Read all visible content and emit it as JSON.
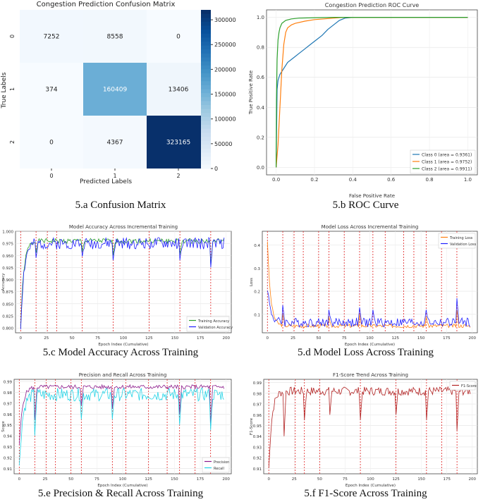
{
  "captions": {
    "a": "5.a Confusion Matrix",
    "b": "5.b ROC Curve",
    "c": "5.c Model Accuracy Across Training",
    "d": "5.d Model Loss Across Training",
    "e": "5.e Precision & Recall Across Training",
    "f": "5.f F1-Score Across Training"
  },
  "chart_data": [
    {
      "id": "confusion",
      "type": "heatmap",
      "title": "Congestion Prediction Confusion Matrix",
      "xlabel": "Predicted Labels",
      "ylabel": "True Labels",
      "x_tick_labels": [
        "0",
        "1",
        "2"
      ],
      "y_tick_labels": [
        "0",
        "1",
        "2"
      ],
      "matrix": [
        [
          7252,
          8558,
          0
        ],
        [
          374,
          160409,
          13406
        ],
        [
          0,
          4367,
          323165
        ]
      ],
      "colorbar_ticks": [
        0,
        50000,
        100000,
        150000,
        200000,
        250000,
        300000
      ],
      "colorbar_labels": [
        "0",
        "50000",
        "100000",
        "150000",
        "200000",
        "250000",
        "300000"
      ],
      "colormap": [
        "#f7fbff",
        "#deebf7",
        "#c6dbef",
        "#9ecae1",
        "#6baed6",
        "#4292c6",
        "#2171b5",
        "#08519c",
        "#08306b"
      ]
    },
    {
      "id": "roc",
      "type": "line",
      "title": "Congestion Prediction ROC Curve",
      "xlabel": "False Positive Rate",
      "ylabel": "True Positive Rate",
      "xlim": [
        -0.05,
        1.05
      ],
      "ylim": [
        -0.05,
        1.05
      ],
      "x_ticks": [
        0,
        0.2,
        0.4,
        0.6,
        0.8,
        1.0
      ],
      "x_tick_labels": [
        "0.0",
        "0.2",
        "0.4",
        "0.6",
        "0.8",
        "1.0"
      ],
      "y_ticks": [
        0,
        0.2,
        0.4,
        0.6,
        0.8,
        1.0
      ],
      "y_tick_labels": [
        "0.0",
        "0.2",
        "0.4",
        "0.6",
        "0.8",
        "1.0"
      ],
      "legend_position": "bottom-right",
      "series": [
        {
          "name": "Class 0 (area = 0.9361)",
          "color": "#1f77b4",
          "x": [
            0,
            0.005,
            0.01,
            0.02,
            0.04,
            0.06,
            0.09,
            0.12,
            0.15,
            0.18,
            0.21,
            0.24,
            0.27,
            0.3,
            0.33,
            0.36,
            0.4,
            0.45,
            1.0
          ],
          "y": [
            0,
            0.52,
            0.58,
            0.62,
            0.66,
            0.7,
            0.73,
            0.76,
            0.79,
            0.82,
            0.85,
            0.88,
            0.92,
            0.95,
            0.98,
            0.995,
            1.0,
            1.0,
            1.0
          ]
        },
        {
          "name": "Class 1 (area = 0.9752)",
          "color": "#ff7f0e",
          "x": [
            0,
            0.01,
            0.02,
            0.03,
            0.04,
            0.05,
            0.06,
            0.08,
            0.1,
            0.15,
            0.2,
            0.25,
            0.3,
            0.35,
            0.4,
            1.0
          ],
          "y": [
            0,
            0.15,
            0.4,
            0.65,
            0.82,
            0.9,
            0.93,
            0.95,
            0.96,
            0.975,
            0.985,
            0.99,
            0.995,
            1.0,
            1.0,
            1.0
          ]
        },
        {
          "name": "Class 2 (area = 0.9911)",
          "color": "#2ca02c",
          "x": [
            0,
            0.002,
            0.005,
            0.01,
            0.015,
            0.02,
            0.03,
            0.05,
            0.08,
            0.12,
            0.2,
            0.3,
            1.0
          ],
          "y": [
            0,
            0.45,
            0.72,
            0.85,
            0.9,
            0.93,
            0.96,
            0.98,
            0.99,
            0.995,
            0.998,
            1.0,
            1.0
          ]
        }
      ]
    },
    {
      "id": "accuracy",
      "type": "line",
      "title": "Model Accuracy Across Incremental Training",
      "xlabel": "Epoch Index (Cumulative)",
      "ylabel": "Accuracy",
      "xlim": [
        -5,
        205
      ],
      "ylim": [
        0.79,
        1.0
      ],
      "x_ticks": [
        0,
        25,
        50,
        75,
        100,
        125,
        150,
        175,
        200
      ],
      "y_ticks": [
        0.8,
        0.825,
        0.85,
        0.875,
        0.9,
        0.925,
        0.95,
        0.975,
        1.0
      ],
      "y_tick_labels": [
        "0.800",
        "0.825",
        "0.850",
        "0.875",
        "0.900",
        "0.925",
        "0.950",
        "0.975",
        "1.000"
      ],
      "retrain_markers": [
        0,
        15,
        26,
        35,
        60,
        90,
        125,
        155,
        185
      ],
      "legend_position": "bottom-right",
      "series": [
        {
          "name": "Training Accuracy",
          "color": "#2ca02c",
          "start": 0.8,
          "plateau": 0.98,
          "noise": 0.005,
          "seed": 1,
          "dips": [
            [
              15,
              0.955
            ],
            [
              60,
              0.958
            ],
            [
              90,
              0.95
            ],
            [
              155,
              0.952
            ],
            [
              185,
              0.93
            ]
          ]
        },
        {
          "name": "Validation Accuracy",
          "color": "#1f1fff",
          "start": 0.8,
          "plateau": 0.975,
          "noise": 0.012,
          "seed": 2,
          "dips": [
            [
              15,
              0.945
            ],
            [
              60,
              0.948
            ],
            [
              90,
              0.94
            ],
            [
              155,
              0.94
            ],
            [
              185,
              0.925
            ]
          ]
        }
      ]
    },
    {
      "id": "loss",
      "type": "line",
      "title": "Model Loss Across Incremental Training",
      "xlabel": "Epoch Index (Cumulative)",
      "ylabel": "Loss",
      "xlim": [
        -5,
        205
      ],
      "ylim": [
        0.02,
        0.46
      ],
      "x_ticks": [
        0,
        25,
        50,
        75,
        100,
        125,
        150,
        175,
        200
      ],
      "y_ticks": [
        0.1,
        0.2,
        0.3,
        0.4
      ],
      "y_tick_labels": [
        "0.1",
        "0.2",
        "0.3",
        "0.4"
      ],
      "retrain_markers": [
        0,
        15,
        26,
        35,
        50,
        60,
        75,
        90,
        103,
        115,
        133,
        143,
        155,
        170,
        185
      ],
      "legend_position": "top-right",
      "series": [
        {
          "name": "Training Loss",
          "color": "#ff7f0e",
          "start": 0.42,
          "plateau": 0.05,
          "noise": 0.008,
          "seed": 3,
          "dips": [
            [
              15,
              0.1
            ],
            [
              60,
              0.09
            ],
            [
              90,
              0.1
            ],
            [
              155,
              0.09
            ],
            [
              185,
              0.12
            ]
          ]
        },
        {
          "name": "Validation Loss",
          "color": "#1f1fff",
          "start": 0.22,
          "plateau": 0.065,
          "noise": 0.02,
          "seed": 4,
          "dips": [
            [
              15,
              0.14
            ],
            [
              60,
              0.12
            ],
            [
              90,
              0.13
            ],
            [
              103,
              0.12
            ],
            [
              155,
              0.12
            ],
            [
              185,
              0.17
            ]
          ]
        }
      ]
    },
    {
      "id": "precision_recall",
      "type": "line",
      "title": "Precision and Recall Across Training",
      "xlabel": "Epoch Index (Cumulative)",
      "ylabel": "Score",
      "xlim": [
        -5,
        205
      ],
      "ylim": [
        0.905,
        0.992
      ],
      "x_ticks": [
        0,
        25,
        50,
        75,
        100,
        125,
        150,
        175,
        200
      ],
      "y_ticks": [
        0.91,
        0.92,
        0.93,
        0.94,
        0.95,
        0.96,
        0.97,
        0.98,
        0.99
      ],
      "y_tick_labels": [
        "0.91",
        "0.92",
        "0.93",
        "0.94",
        "0.95",
        "0.96",
        "0.97",
        "0.98",
        "0.99"
      ],
      "retrain_markers": [
        0,
        15,
        26,
        35,
        50,
        60,
        90,
        103,
        125,
        143,
        155,
        170,
        185
      ],
      "legend_position": "bottom-right",
      "series": [
        {
          "name": "Precision",
          "color": "#8b1a8b",
          "start": 0.93,
          "plateau": 0.985,
          "noise": 0.002,
          "seed": 5,
          "dips": [
            [
              15,
              0.955
            ],
            [
              60,
              0.968
            ],
            [
              90,
              0.965
            ],
            [
              155,
              0.96
            ],
            [
              185,
              0.95
            ]
          ]
        },
        {
          "name": "Recall",
          "color": "#22d3e6",
          "start": 0.91,
          "plateau": 0.978,
          "noise": 0.006,
          "seed": 6,
          "dips": [
            [
              15,
              0.94
            ],
            [
              60,
              0.955
            ],
            [
              90,
              0.955
            ],
            [
              155,
              0.95
            ],
            [
              185,
              0.945
            ]
          ]
        }
      ]
    },
    {
      "id": "f1",
      "type": "line",
      "title": "F1-Score Trend Across Training",
      "xlabel": "Epoch Index (Cumulative)",
      "ylabel": "F1-Score",
      "xlim": [
        -5,
        205
      ],
      "ylim": [
        0.905,
        0.993
      ],
      "x_ticks": [
        0,
        25,
        50,
        75,
        100,
        125,
        150,
        175,
        200
      ],
      "y_ticks": [
        0.91,
        0.92,
        0.93,
        0.94,
        0.95,
        0.96,
        0.97,
        0.98,
        0.99
      ],
      "y_tick_labels": [
        "0.91",
        "0.92",
        "0.93",
        "0.94",
        "0.95",
        "0.96",
        "0.97",
        "0.98",
        "0.99"
      ],
      "retrain_markers": [
        0,
        26,
        35,
        50,
        90,
        125,
        155,
        170,
        185
      ],
      "legend_position": "top-right",
      "series": [
        {
          "name": "F1-Score",
          "color": "#b22222",
          "start": 0.91,
          "plateau": 0.982,
          "noise": 0.004,
          "seed": 7,
          "dips": [
            [
              15,
              0.94
            ],
            [
              35,
              0.955
            ],
            [
              60,
              0.96
            ],
            [
              90,
              0.955
            ],
            [
              125,
              0.96
            ],
            [
              155,
              0.955
            ],
            [
              185,
              0.945
            ]
          ]
        }
      ]
    }
  ]
}
